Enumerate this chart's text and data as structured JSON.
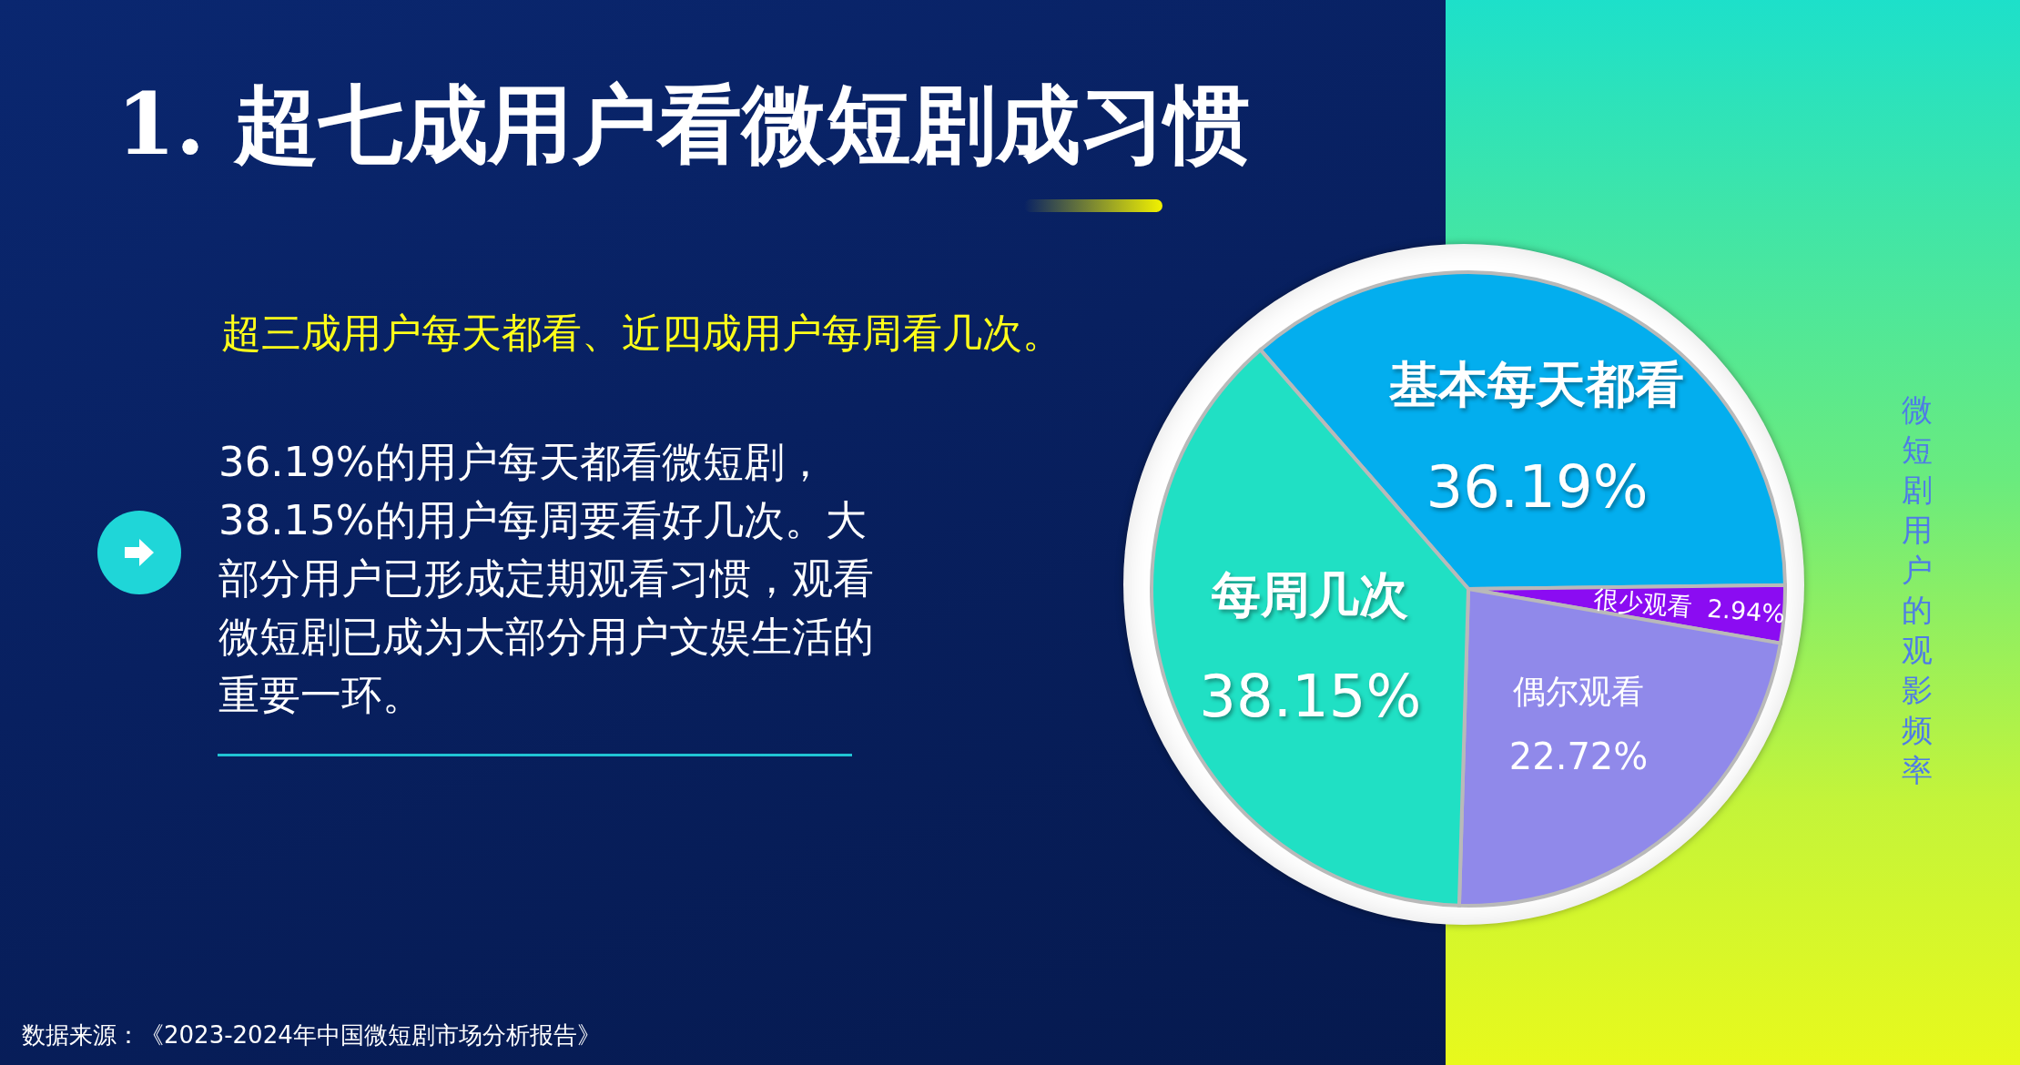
{
  "chart_data": {
    "type": "pie",
    "title": "1. 超七成用户看微短剧成习惯",
    "subtitle": "超三成用户每天都看、近四成用户每周看几次。",
    "categories": [
      "基本每天都看",
      "很少观看",
      "偶尔观看",
      "每周几次"
    ],
    "values": [
      36.19,
      2.94,
      22.72,
      38.15
    ],
    "colors": [
      "#03aeee",
      "#8b0cf2",
      "#9089ea",
      "#20e0c4"
    ],
    "value_labels": [
      "36.19%",
      "2.94%",
      "22.72%",
      "38.15%"
    ],
    "annotations": [
      "36.19%的用户每天都看微短剧，38.15%的用户每周要看好几次。大部分用户已形成定期观看习惯，观看微短剧已成为大部分用户文娱生活的重要一环。",
      "微短剧用户的观影频率",
      "数据来源：《2023-2024年中国微短剧市场分析报告》"
    ]
  }
}
